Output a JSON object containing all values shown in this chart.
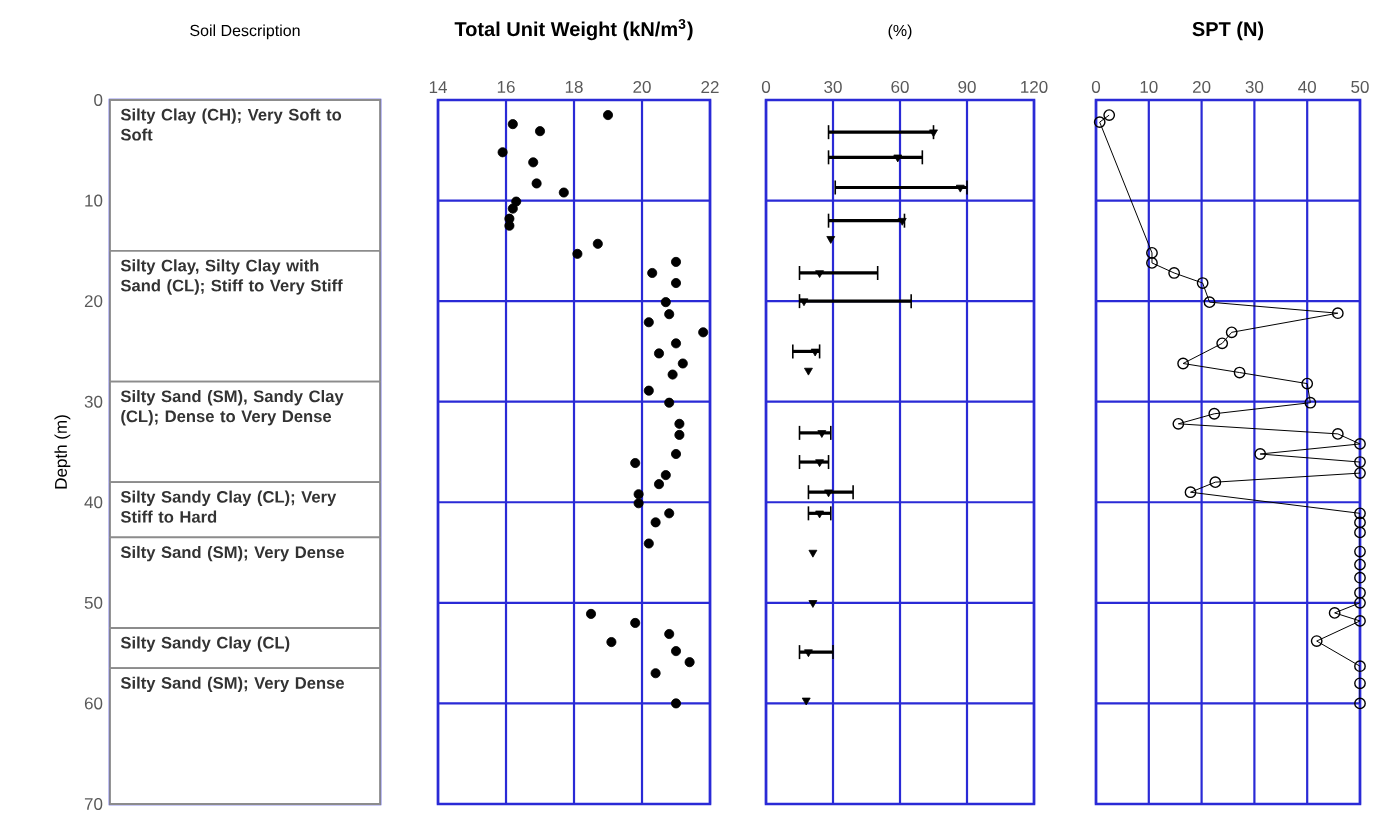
{
  "chart_data": [
    {
      "type": "bar",
      "stacked": true,
      "title": "Soil Description",
      "ylabel": "Depth (m)",
      "ylim": [
        70,
        0
      ],
      "yticks": [
        0,
        10,
        20,
        30,
        40,
        50,
        60,
        70
      ],
      "tick_labels": "y",
      "categories": [
        null
      ],
      "series": [
        {
          "name": "Silty Clay (CH); Very Soft to Soft",
          "color": "#ffffff",
          "values": [
            15
          ]
        },
        {
          "name": "Silty Clay, Silty Clay with Sand (CL); Stiff to Very Stiff",
          "color": "#ffffff",
          "values": [
            13
          ]
        },
        {
          "name": "Silty Sand (SM), Sandy Clay (CL); Dense to Very Dense",
          "color": "#ffffff",
          "values": [
            10
          ]
        },
        {
          "name": "Silty Sandy Clay (CL); Very Stiff to Hard",
          "color": "#ffffff",
          "values": [
            5.5
          ]
        },
        {
          "name": "Silty Sand (SM); Very Dense",
          "color": "#ffffff",
          "values": [
            9
          ]
        },
        {
          "name": "Silty Sandy Clay (CL)",
          "color": "#ffffff",
          "values": [
            4
          ]
        },
        {
          "name": "Silty Sand (SM); Very Dense",
          "color": "#ffffff",
          "values": [
            13.5
          ]
        }
      ]
    },
    {
      "type": "scatter",
      "title": "Total Unit Weight (kN/m$^{3}$)",
      "xlim": [
        14,
        22
      ],
      "xticks": [
        14,
        16,
        18,
        20,
        22
      ],
      "ylim": [
        70,
        0
      ],
      "yticks": [
        0,
        10,
        20,
        30,
        40,
        50,
        60,
        70
      ],
      "tick_labels": "x",
      "grid": true,
      "marker": "circle",
      "color": "#000000",
      "x": [
        19.0,
        16.2,
        17.0,
        15.9,
        16.8,
        16.9,
        17.7,
        16.3,
        16.2,
        16.1,
        16.1,
        18.7,
        18.1,
        21.0,
        20.3,
        21.0,
        20.7,
        20.8,
        20.2,
        21.8,
        21.0,
        20.5,
        21.2,
        20.9,
        20.2,
        20.8,
        21.1,
        21.1,
        21.0,
        19.8,
        20.7,
        20.5,
        19.9,
        19.9,
        20.8,
        20.4,
        20.2,
        18.5,
        19.8,
        20.8,
        19.1,
        21.0,
        21.4,
        20.4,
        21.0
      ],
      "values": [
        1.5,
        2.4,
        3.1,
        5.2,
        6.2,
        8.3,
        9.2,
        10.1,
        10.8,
        11.8,
        12.5,
        14.3,
        15.3,
        16.1,
        17.2,
        18.2,
        20.1,
        21.3,
        22.1,
        23.1,
        24.2,
        25.2,
        26.2,
        27.3,
        28.9,
        30.1,
        32.2,
        33.3,
        35.2,
        36.1,
        37.3,
        38.2,
        39.2,
        40.1,
        41.1,
        42.0,
        44.1,
        51.1,
        52.0,
        53.1,
        53.9,
        54.8,
        55.9,
        57.0,
        60.0
      ]
    },
    {
      "type": "scatter",
      "title": "(%)",
      "xlim": [
        0,
        120
      ],
      "xticks": [
        0,
        30,
        60,
        90,
        120
      ],
      "ylim": [
        70,
        0
      ],
      "yticks": [
        0,
        10,
        20,
        30,
        40,
        50,
        60,
        70
      ],
      "tick_labels": "x",
      "grid": true,
      "marker": "triangle",
      "color": "#000000",
      "x": [
        75,
        59,
        87,
        61,
        29,
        24,
        17,
        22,
        19,
        25,
        24,
        28,
        24,
        21,
        21,
        19,
        18
      ],
      "values": [
        3.2,
        5.7,
        8.7,
        12.0,
        13.8,
        17.2,
        20.0,
        25.0,
        26.9,
        33.1,
        36.0,
        39.0,
        41.1,
        45.0,
        50.0,
        54.9,
        59.7
      ],
      "xerrors": [
        [
          28,
          75
        ],
        [
          28,
          70
        ],
        [
          31,
          90
        ],
        [
          28,
          62
        ],
        null,
        [
          15,
          50
        ],
        [
          15,
          65
        ],
        [
          12,
          24
        ],
        null,
        [
          15,
          29
        ],
        [
          15,
          28
        ],
        [
          19,
          39
        ],
        [
          19,
          29
        ],
        null,
        null,
        [
          15,
          30
        ],
        null
      ]
    },
    {
      "type": "line",
      "title": "SPT (N)",
      "xlim": [
        0,
        50
      ],
      "xticks": [
        0,
        10,
        20,
        30,
        40,
        50
      ],
      "ylim": [
        70,
        0
      ],
      "yticks": [
        0,
        10,
        20,
        30,
        40,
        50,
        60,
        70
      ],
      "tick_labels": "x",
      "grid": true,
      "marker": "circle",
      "line_style": "solid",
      "color": "#000000",
      "x": [
        2.5,
        0.7,
        10.6,
        10.6,
        14.8,
        20.2,
        21.5,
        45.8,
        25.7,
        23.9,
        16.5,
        27.2,
        40,
        40.6,
        22.4,
        15.6,
        45.8,
        50,
        31.1,
        50,
        50,
        22.6,
        17.9,
        50,
        50,
        50,
        50,
        50,
        50,
        50,
        50,
        45.2,
        50,
        41.8,
        50,
        50,
        50
      ],
      "values": [
        1.5,
        2.2,
        15.2,
        16.2,
        17.2,
        18.2,
        20.1,
        21.2,
        23.1,
        24.2,
        26.2,
        27.1,
        28.2,
        30.1,
        31.2,
        32.2,
        33.2,
        34.2,
        35.2,
        36.0,
        37.1,
        38.0,
        39.0,
        41.1,
        42.0,
        43.0,
        44.9,
        46.2,
        47.5,
        49.0,
        50.0,
        51.0,
        51.8,
        53.8,
        56.3,
        58.0,
        60.0
      ]
    }
  ]
}
